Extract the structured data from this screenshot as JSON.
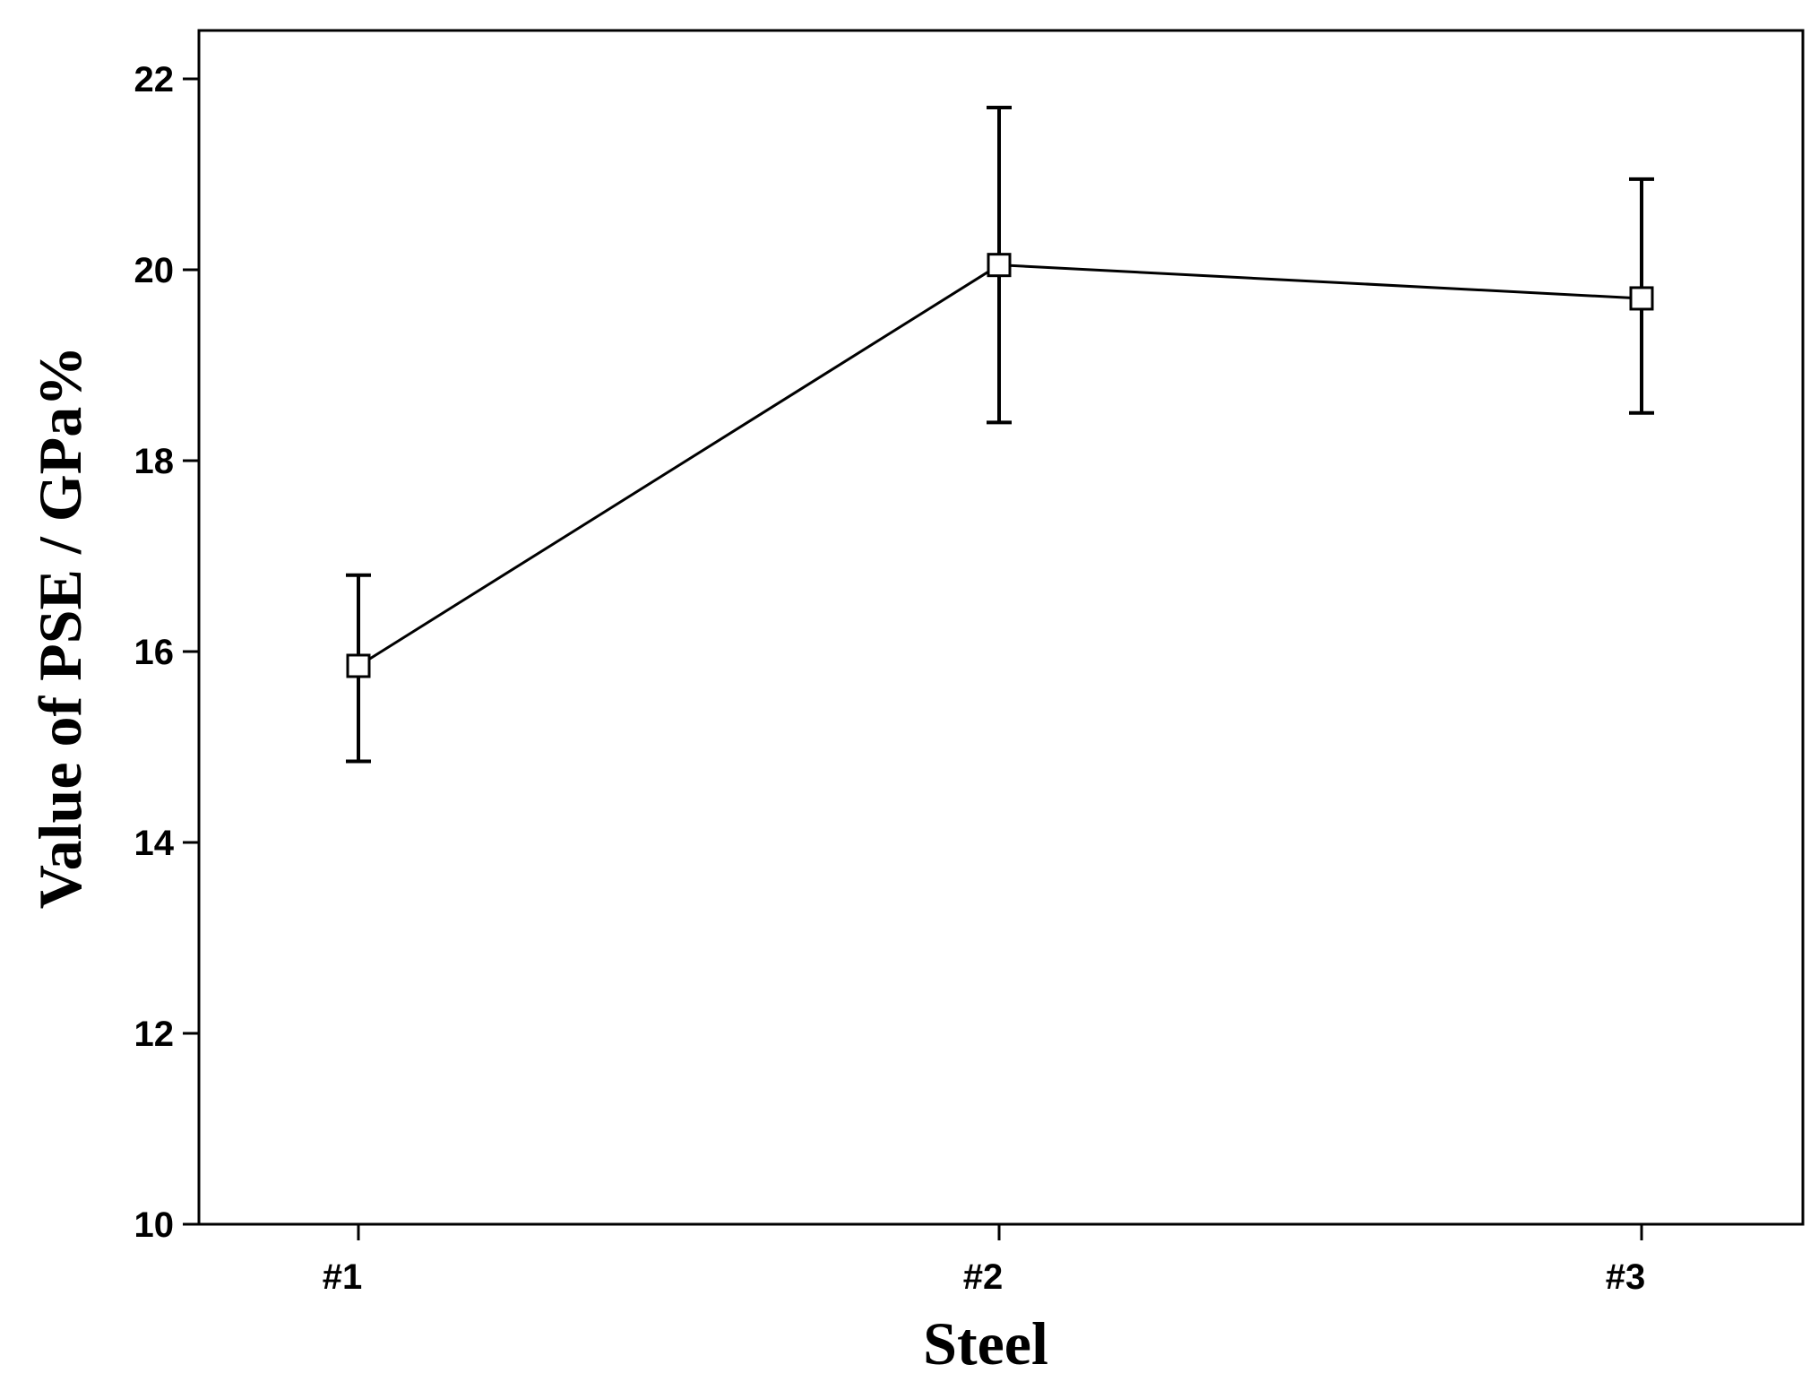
{
  "chart_data": {
    "type": "line",
    "xlabel": "Steel",
    "ylabel": "Value of PSE / GPa%",
    "categories": [
      "#1",
      "#2",
      "#3"
    ],
    "ylim": [
      10,
      22
    ],
    "yticks": [
      10,
      12,
      14,
      16,
      18,
      20,
      22
    ],
    "series": [
      {
        "values": [
          15.85,
          20.05,
          19.7
        ],
        "error_low": [
          14.85,
          18.4,
          18.5
        ],
        "error_high": [
          16.8,
          21.7,
          20.95
        ],
        "marker": "open-square",
        "color": "#000000"
      }
    ],
    "grid": false,
    "legend": "none"
  }
}
